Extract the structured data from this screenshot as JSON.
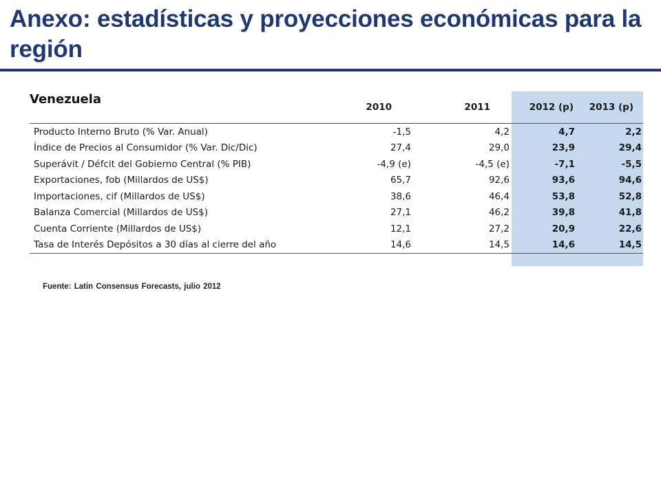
{
  "slide": {
    "title": "Anexo: estadísticas y proyecciones económicas para la región",
    "country": "Venezuela",
    "source": "Fuente: Latin Consensus Forecasts, julio 2012"
  },
  "colors": {
    "title": "#1f3872",
    "forecast_band": "#c5d8ee"
  },
  "table": {
    "columns": [
      "",
      "2010",
      "2011",
      "2012 (p)",
      "2013 (p)"
    ],
    "rows": [
      {
        "label": "Producto Interno Bruto (% Var. Anual)",
        "values": [
          "-1,5",
          "4,2",
          "4,7",
          "2,2"
        ]
      },
      {
        "label": "Índice de Precios al Consumidor (% Var. Dic/Dic)",
        "values": [
          "27,4",
          "29,0",
          "23,9",
          "29,4"
        ]
      },
      {
        "label": "Superávit / Défcit del Gobierno Central (% PIB)",
        "values": [
          "-4,9 (e)",
          "-4,5 (e)",
          "-7,1",
          "-5,5"
        ]
      },
      {
        "label": "Exportaciones, fob (Millardos de US$)",
        "values": [
          "65,7",
          "92,6",
          "93,6",
          "94,6"
        ]
      },
      {
        "label": "Importaciones, cif (Millardos de US$)",
        "values": [
          "38,6",
          "46,4",
          "53,8",
          "52,8"
        ]
      },
      {
        "label": "Balanza Comercial (Millardos de US$)",
        "values": [
          "27,1",
          "46,2",
          "39,8",
          "41,8"
        ]
      },
      {
        "label": "Cuenta Corriente (Millardos de US$)",
        "values": [
          "12,1",
          "27,2",
          "20,9",
          "22,6"
        ]
      },
      {
        "label": "Tasa de Interés Depósitos a 30 días al cierre del año",
        "values": [
          "14,6",
          "14,5",
          "14,6",
          "14,5"
        ]
      }
    ]
  }
}
